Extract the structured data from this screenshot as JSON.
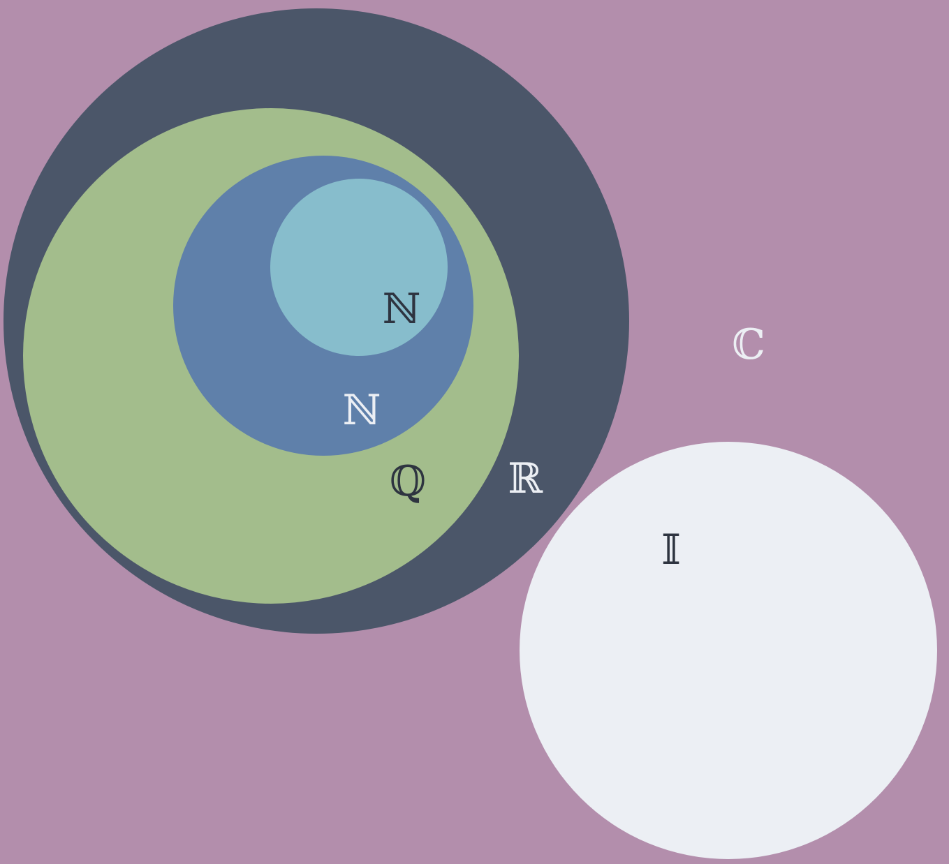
{
  "colors": {
    "background": "#b38eac",
    "real_set": "#4b5669",
    "rational_set": "#a3bd8c",
    "integer_set": "#5f80aa",
    "natural_set": "#87bdcc",
    "irrational_set": "#eceff4",
    "text_dark": "#2e3440",
    "text_light": "#eceff4"
  },
  "sets": {
    "complex": {
      "symbol": "ℂ",
      "color": "#eceff4"
    },
    "real": {
      "symbol": "ℝ",
      "color": "#eceff4"
    },
    "rational": {
      "symbol": "ℚ",
      "color": "#2e3440"
    },
    "integer": {
      "symbol": "ℕ",
      "color": "#eceff4"
    },
    "natural": {
      "symbol": "ℕ",
      "color": "#2e3440"
    },
    "irrational": {
      "symbol": "𝕀",
      "color": "#2e3440"
    }
  }
}
